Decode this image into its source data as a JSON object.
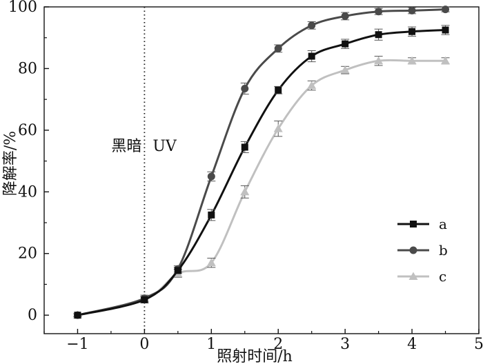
{
  "chart_data": {
    "type": "line",
    "title": "",
    "xlabel": "照射时间/h",
    "ylabel": "降解率/%",
    "xlim": [
      -1.5,
      5
    ],
    "ylim": [
      -6,
      100
    ],
    "xticks": [
      -1,
      0,
      1,
      2,
      3,
      4,
      5
    ],
    "xtick_labels": [
      "−1",
      "0",
      "1",
      "2",
      "3",
      "4",
      "5"
    ],
    "yticks": [
      0,
      20,
      40,
      60,
      80,
      100
    ],
    "ytick_labels": [
      "0",
      "20",
      "40",
      "60",
      "80",
      "100"
    ],
    "grid": false,
    "legend_position": "lower-right",
    "annotations": {
      "divider_x": 0,
      "dark_label": "黑暗",
      "uv_label": "UV"
    },
    "x": [
      -1,
      0,
      0.5,
      1,
      1.5,
      2,
      2.5,
      3,
      3.5,
      4,
      4.5
    ],
    "series": [
      {
        "name": "a",
        "marker": "square",
        "color": "#111111",
        "values": [
          0,
          5,
          14.5,
          32.5,
          54.5,
          73,
          84,
          88,
          91,
          92,
          92.5
        ],
        "errors": [
          0.5,
          1,
          1,
          1.8,
          1.8,
          1.2,
          1.8,
          1.5,
          1.8,
          1.5,
          1.5
        ]
      },
      {
        "name": "b",
        "marker": "circle",
        "color": "#4a4a4a",
        "values": [
          0,
          5.5,
          15,
          45,
          73.5,
          86.5,
          94,
          97,
          98.5,
          98.8,
          99.2
        ],
        "errors": [
          0.5,
          1,
          1,
          1.5,
          1.8,
          1.2,
          1.2,
          1.2,
          1,
          1,
          0.8
        ]
      },
      {
        "name": "c",
        "marker": "triangle",
        "color": "#c0c0c0",
        "values": [
          0,
          5,
          13.5,
          17,
          40,
          60.5,
          74.5,
          79.5,
          82.5,
          82.5,
          82.5
        ],
        "errors": [
          0.5,
          1,
          1.2,
          1.5,
          2,
          2.5,
          1.5,
          1.2,
          1.5,
          1,
          1
        ]
      }
    ]
  }
}
